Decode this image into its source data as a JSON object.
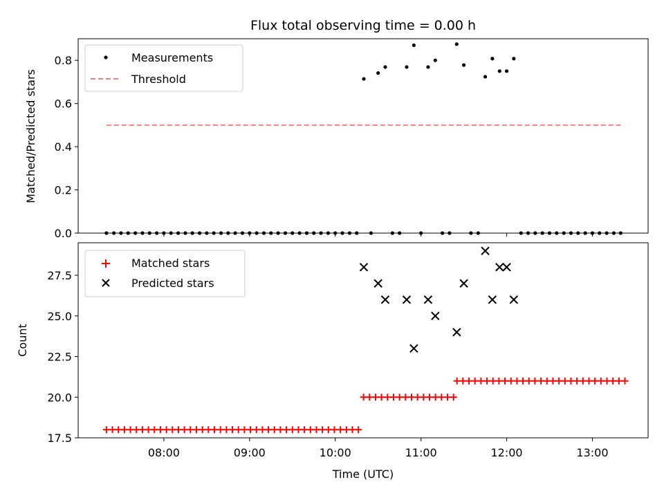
{
  "chart_data": [
    {
      "type": "scatter",
      "title": "Flux total observing time = 0.00 h",
      "xlabel": "",
      "ylabel": "Matched/Predicted stars",
      "xlim": [
        7.0,
        13.65
      ],
      "ylim": [
        0.0,
        0.9
      ],
      "yticks": [
        0.0,
        0.2,
        0.4,
        0.6,
        0.8
      ],
      "ytick_labels": [
        "0.0",
        "0.2",
        "0.4",
        "0.6",
        "0.8"
      ],
      "xticks": [
        8,
        9,
        10,
        11,
        12,
        13
      ],
      "legend": {
        "position": "top-left",
        "entries": [
          "Measurements",
          "Threshold"
        ]
      },
      "series": [
        {
          "name": "Measurements",
          "marker": "dot",
          "color": "#000000",
          "x": [
            7.33,
            7.417,
            7.5,
            7.583,
            7.667,
            7.75,
            7.833,
            7.917,
            8.0,
            8.083,
            8.167,
            8.25,
            8.333,
            8.417,
            8.5,
            8.583,
            8.667,
            8.75,
            8.833,
            8.917,
            9.0,
            9.083,
            9.167,
            9.25,
            9.333,
            9.417,
            9.5,
            9.583,
            9.667,
            9.75,
            9.833,
            9.917,
            10.0,
            10.083,
            10.167,
            10.25,
            10.333,
            10.417,
            10.5,
            10.583,
            10.667,
            10.75,
            10.833,
            10.917,
            11.0,
            11.083,
            11.167,
            11.25,
            11.333,
            11.417,
            11.5,
            11.583,
            11.667,
            11.75,
            11.833,
            11.917,
            12.0,
            12.083,
            12.167,
            12.25,
            12.333,
            12.417,
            12.5,
            12.583,
            12.667,
            12.75,
            12.833,
            12.917,
            13.0,
            13.083,
            13.167,
            13.25,
            13.33
          ],
          "y": [
            0,
            0,
            0,
            0,
            0,
            0,
            0,
            0,
            0,
            0,
            0,
            0,
            0,
            0,
            0,
            0,
            0,
            0,
            0,
            0,
            0,
            0,
            0,
            0,
            0,
            0,
            0,
            0,
            0,
            0,
            0,
            0,
            0,
            0,
            0,
            0,
            0.714,
            0,
            0.741,
            0.769,
            0,
            0,
            0.769,
            0.87,
            0,
            0.769,
            0.8,
            0,
            0,
            0.875,
            0.778,
            0,
            0,
            0.724,
            0.808,
            0.75,
            0.75,
            0.808,
            0,
            0,
            0,
            0,
            0,
            0,
            0,
            0,
            0,
            0,
            0,
            0,
            0,
            0,
            0
          ]
        },
        {
          "name": "Threshold",
          "style": "dashed",
          "color": "#ff7f7f",
          "x": [
            7.33,
            13.33
          ],
          "y": [
            0.5,
            0.5
          ]
        }
      ]
    },
    {
      "type": "scatter",
      "title": "",
      "xlabel": "Time (UTC)",
      "ylabel": "Count",
      "xlim": [
        7.0,
        13.65
      ],
      "ylim": [
        17.5,
        29.5
      ],
      "yticks": [
        17.5,
        20.0,
        22.5,
        25.0,
        27.5
      ],
      "ytick_labels": [
        "17.5",
        "20.0",
        "22.5",
        "25.0",
        "27.5"
      ],
      "xticks": [
        8,
        9,
        10,
        11,
        12,
        13
      ],
      "xtick_labels": [
        "08:00",
        "09:00",
        "10:00",
        "11:00",
        "12:00",
        "13:00"
      ],
      "legend": {
        "position": "top-left",
        "entries": [
          "Matched stars",
          "Predicted stars"
        ]
      },
      "series": [
        {
          "name": "Matched stars",
          "marker": "plus",
          "color": "#ff0000",
          "x": [
            7.33,
            7.4,
            7.47,
            7.54,
            7.61,
            7.68,
            7.75,
            7.82,
            7.89,
            7.96,
            8.03,
            8.1,
            8.17,
            8.24,
            8.31,
            8.38,
            8.45,
            8.52,
            8.59,
            8.66,
            8.73,
            8.8,
            8.87,
            8.94,
            9.01,
            9.08,
            9.15,
            9.22,
            9.29,
            9.36,
            9.43,
            9.5,
            9.57,
            9.64,
            9.71,
            9.78,
            9.85,
            9.92,
            9.99,
            10.06,
            10.13,
            10.2,
            10.27,
            10.33,
            10.4,
            10.47,
            10.54,
            10.61,
            10.68,
            10.75,
            10.82,
            10.89,
            10.96,
            11.03,
            11.1,
            11.17,
            11.24,
            11.31,
            11.38,
            11.42,
            11.49,
            11.56,
            11.63,
            11.7,
            11.77,
            11.84,
            11.91,
            11.98,
            12.05,
            12.12,
            12.19,
            12.26,
            12.33,
            12.4,
            12.47,
            12.54,
            12.61,
            12.68,
            12.75,
            12.82,
            12.89,
            12.96,
            13.03,
            13.1,
            13.17,
            13.24,
            13.31,
            13.38
          ],
          "y": [
            18,
            18,
            18,
            18,
            18,
            18,
            18,
            18,
            18,
            18,
            18,
            18,
            18,
            18,
            18,
            18,
            18,
            18,
            18,
            18,
            18,
            18,
            18,
            18,
            18,
            18,
            18,
            18,
            18,
            18,
            18,
            18,
            18,
            18,
            18,
            18,
            18,
            18,
            18,
            18,
            18,
            18,
            18,
            20,
            20,
            20,
            20,
            20,
            20,
            20,
            20,
            20,
            20,
            20,
            20,
            20,
            20,
            20,
            20,
            21,
            21,
            21,
            21,
            21,
            21,
            21,
            21,
            21,
            21,
            21,
            21,
            21,
            21,
            21,
            21,
            21,
            21,
            21,
            21,
            21,
            21,
            21,
            21,
            21,
            21,
            21,
            21,
            21
          ]
        },
        {
          "name": "Predicted stars",
          "marker": "x",
          "color": "#000000",
          "x": [
            10.333,
            10.5,
            10.583,
            10.833,
            10.917,
            11.083,
            11.167,
            11.417,
            11.5,
            11.75,
            11.833,
            11.917,
            12.0,
            12.083
          ],
          "y": [
            28,
            27,
            26,
            26,
            23,
            26,
            25,
            24,
            27,
            29,
            26,
            28,
            28,
            26
          ]
        }
      ]
    }
  ]
}
